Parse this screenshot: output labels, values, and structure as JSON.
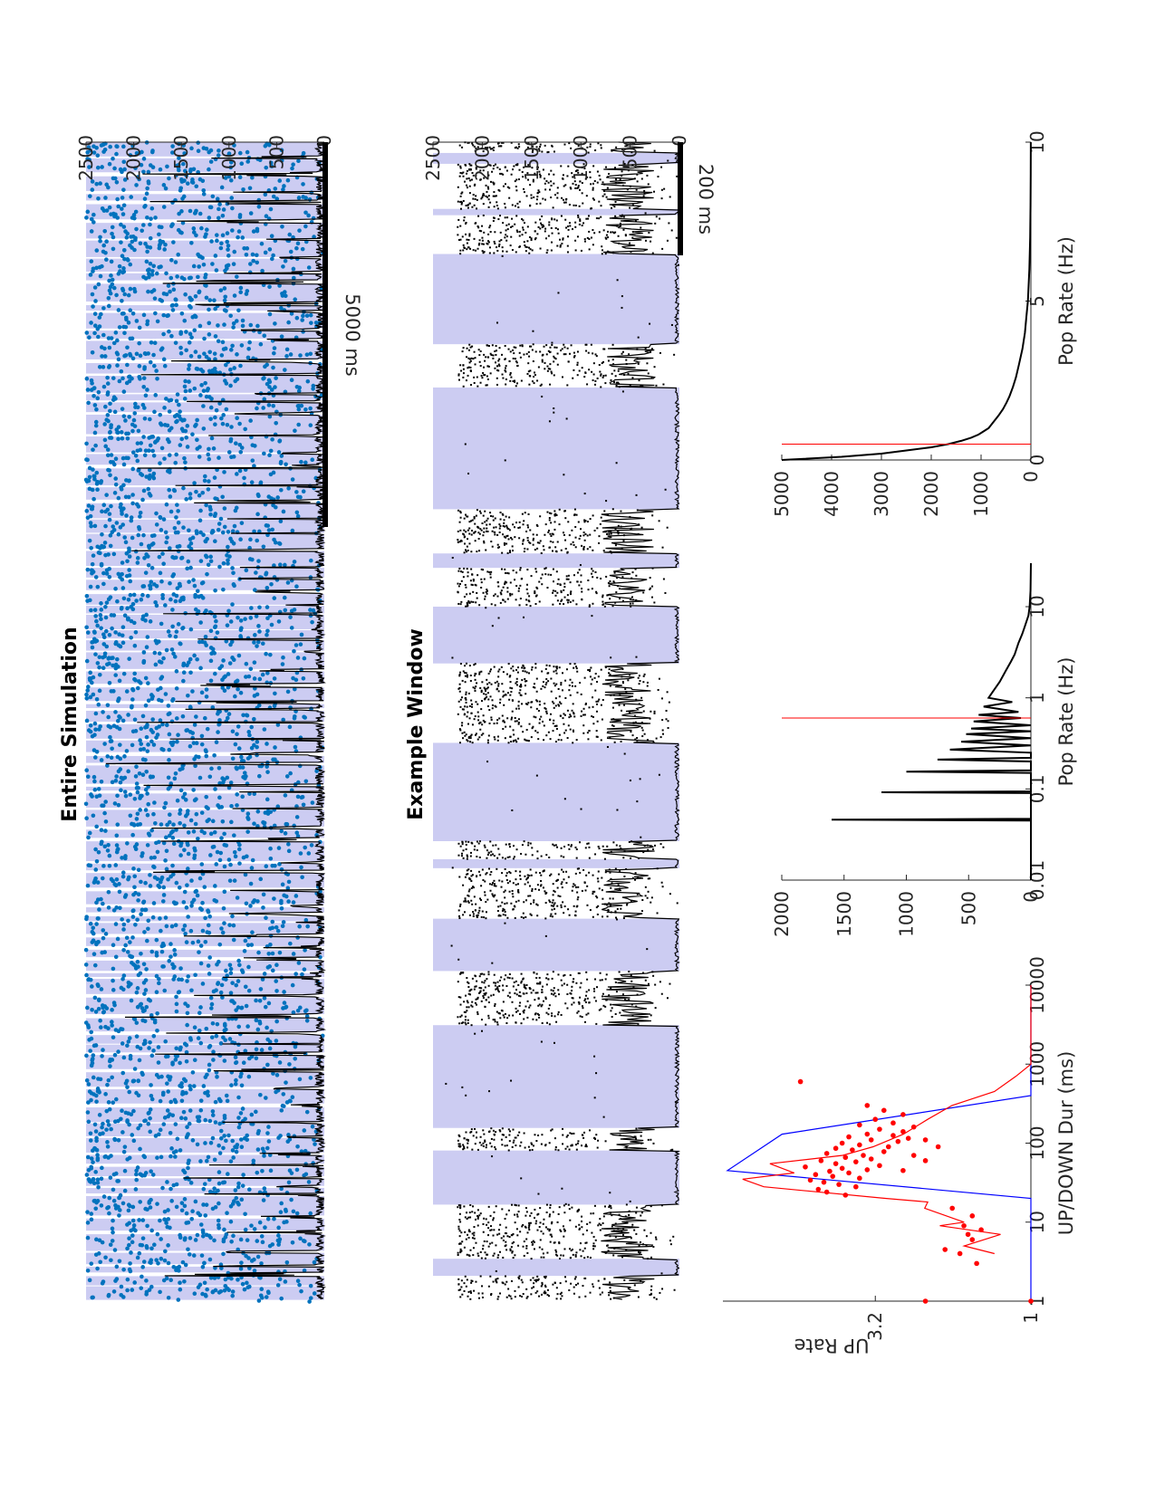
{
  "chart_data": [
    {
      "type": "raster",
      "title": "Entire Simulation",
      "ylim": [
        0,
        2500
      ],
      "yticks": [
        "0",
        "500",
        "1000",
        "1500",
        "2000",
        "2500"
      ],
      "scalebar_label": "5000 ms",
      "colors": {
        "up_shade": "#ccccf2",
        "spikes": "#0072bd",
        "rate": "#000000"
      }
    },
    {
      "type": "raster",
      "title": "Example Window",
      "ylim": [
        0,
        2500
      ],
      "yticks": [
        "0",
        "500",
        "1000",
        "1500",
        "2000",
        "2500"
      ],
      "scalebar_label": "200 ms",
      "down_states_fraction": [
        [
          0.0,
          0.012
        ],
        [
          0.024,
          0.074
        ],
        [
          0.081,
          0.124
        ],
        [
          0.224,
          0.272
        ],
        [
          0.407,
          0.456
        ],
        [
          0.472,
          0.515
        ],
        [
          0.578,
          0.666
        ],
        [
          0.775,
          0.795
        ],
        [
          0.805,
          0.861
        ],
        [
          0.919,
          0.979
        ],
        [
          1.093,
          1.118
        ],
        [
          1.178,
          1.238
        ],
        [
          1.257,
          1.283
        ]
      ],
      "colors": {
        "up_shade": "#ccccf2",
        "spikes": "#000000",
        "rate": "#000000"
      }
    },
    {
      "type": "line+scatter",
      "xlabel": "UP/DOWN Dur (ms)",
      "ylabel": "UP Rate",
      "xscale": "log",
      "xlim": [
        1,
        10000
      ],
      "xticks": [
        "1",
        "10",
        "100",
        "1000",
        "10000"
      ],
      "yscale": "log",
      "ylim": [
        1,
        10
      ],
      "yticks": [
        "1",
        "3.2"
      ],
      "series": [
        {
          "color": "#0000ff",
          "x": [
            1,
            20,
            45,
            130,
            400,
            10000
          ],
          "y": [
            0.0,
            0.0,
            1.0,
            0.82,
            0.0,
            0.0
          ]
        },
        {
          "color": "#ff0000",
          "x": [
            4,
            5,
            7,
            9,
            10,
            15,
            18,
            20,
            28,
            35,
            42,
            55,
            70,
            90,
            130,
            200,
            300,
            450,
            700,
            1000,
            10000
          ],
          "y": [
            0.12,
            0.22,
            0.1,
            0.3,
            0.22,
            0.35,
            0.34,
            0.48,
            0.88,
            0.95,
            0.78,
            0.86,
            0.62,
            0.52,
            0.42,
            0.34,
            0.26,
            0.12,
            0.05,
            0.0,
            0.0
          ]
        }
      ],
      "points_color": "#ff0000",
      "points": [
        [
          1.0,
          2.2
        ],
        [
          1.0,
          1.0
        ],
        [
          3.0,
          1.5
        ],
        [
          4.0,
          1.7
        ],
        [
          4.5,
          1.9
        ],
        [
          6,
          1.55
        ],
        [
          7,
          1.6
        ],
        [
          8,
          1.45
        ],
        [
          9,
          1.65
        ],
        [
          12,
          1.55
        ],
        [
          15,
          1.8
        ],
        [
          22,
          4.0
        ],
        [
          24,
          4.6
        ],
        [
          26,
          4.9
        ],
        [
          28,
          3.7
        ],
        [
          30,
          4.2
        ],
        [
          32,
          4.7
        ],
        [
          34,
          5.2
        ],
        [
          36,
          3.6
        ],
        [
          38,
          4.4
        ],
        [
          40,
          5.0
        ],
        [
          42,
          3.9
        ],
        [
          44,
          4.5
        ],
        [
          46,
          3.4
        ],
        [
          48,
          4.1
        ],
        [
          50,
          5.4
        ],
        [
          52,
          3.1
        ],
        [
          55,
          4.3
        ],
        [
          58,
          3.7
        ],
        [
          60,
          4.8
        ],
        [
          63,
          3.3
        ],
        [
          66,
          4.0
        ],
        [
          70,
          3.5
        ],
        [
          74,
          4.6
        ],
        [
          78,
          3.0
        ],
        [
          82,
          3.8
        ],
        [
          86,
          4.3
        ],
        [
          90,
          2.9
        ],
        [
          95,
          3.6
        ],
        [
          100,
          4.1
        ],
        [
          105,
          2.7
        ],
        [
          110,
          3.3
        ],
        [
          115,
          2.5
        ],
        [
          120,
          3.9
        ],
        [
          125,
          2.8
        ],
        [
          130,
          3.4
        ],
        [
          140,
          2.6
        ],
        [
          150,
          3.1
        ],
        [
          160,
          2.4
        ],
        [
          170,
          3.6
        ],
        [
          180,
          2.8
        ],
        [
          200,
          3.2
        ],
        [
          230,
          2.6
        ],
        [
          260,
          3.0
        ],
        [
          300,
          3.4
        ],
        [
          90,
          2.0
        ],
        [
          60,
          2.2
        ],
        [
          45,
          2.6
        ],
        [
          70,
          2.4
        ],
        [
          110,
          2.2
        ],
        [
          600,
          5.6
        ]
      ]
    },
    {
      "type": "line",
      "xlabel": "Pop Rate (Hz)",
      "xscale": "log",
      "xlim": [
        0.01,
        30
      ],
      "xticks": [
        "0.01",
        "0.1",
        "1",
        "10"
      ],
      "ylim": [
        0,
        2000
      ],
      "yticks": [
        "0",
        "500",
        "1000",
        "1500",
        "2000"
      ],
      "vline_x": 0.6,
      "vline_color": "#ff0000",
      "line_color": "#000000",
      "x": [
        0.01,
        0.045,
        0.046,
        0.047,
        0.09,
        0.092,
        0.094,
        0.15,
        0.155,
        0.16,
        0.2,
        0.21,
        0.22,
        0.25,
        0.27,
        0.3,
        0.33,
        0.36,
        0.4,
        0.43,
        0.46,
        0.5,
        0.55,
        0.6,
        0.65,
        0.7,
        0.8,
        0.9,
        1.0,
        1.2,
        1.5,
        2.0,
        2.5,
        3.0,
        4.0,
        5.0,
        6.0,
        8.0,
        10.0,
        15.0,
        30.0
      ],
      "y": [
        0,
        0,
        1600,
        0,
        0,
        1200,
        0,
        0,
        1000,
        0,
        0,
        750,
        0,
        0,
        650,
        0,
        560,
        0,
        520,
        0,
        480,
        0,
        460,
        80,
        420,
        100,
        380,
        150,
        340,
        300,
        250,
        200,
        160,
        130,
        100,
        70,
        50,
        20,
        10,
        3,
        0
      ]
    },
    {
      "type": "line",
      "xlabel": "Pop Rate (Hz)",
      "xlim": [
        0,
        10
      ],
      "xticks": [
        "0",
        "5",
        "10"
      ],
      "ylim": [
        0,
        5000
      ],
      "yticks": [
        "0",
        "1000",
        "2000",
        "3000",
        "4000",
        "5000"
      ],
      "vline_x": 0.5,
      "vline_color": "#ff0000",
      "line_color": "#000000",
      "x": [
        0,
        0.1,
        0.2,
        0.3,
        0.4,
        0.5,
        0.6,
        0.7,
        0.8,
        0.9,
        1.0,
        1.2,
        1.4,
        1.6,
        1.8,
        2.0,
        2.3,
        2.6,
        3.0,
        3.5,
        4.0,
        4.5,
        5.0,
        6.0,
        7.0,
        8.0,
        9.0,
        10.0
      ],
      "y": [
        5000,
        3800,
        3000,
        2500,
        2000,
        1650,
        1400,
        1200,
        1050,
        950,
        850,
        750,
        650,
        560,
        490,
        430,
        360,
        300,
        240,
        170,
        120,
        90,
        60,
        30,
        15,
        8,
        4,
        2
      ]
    }
  ]
}
